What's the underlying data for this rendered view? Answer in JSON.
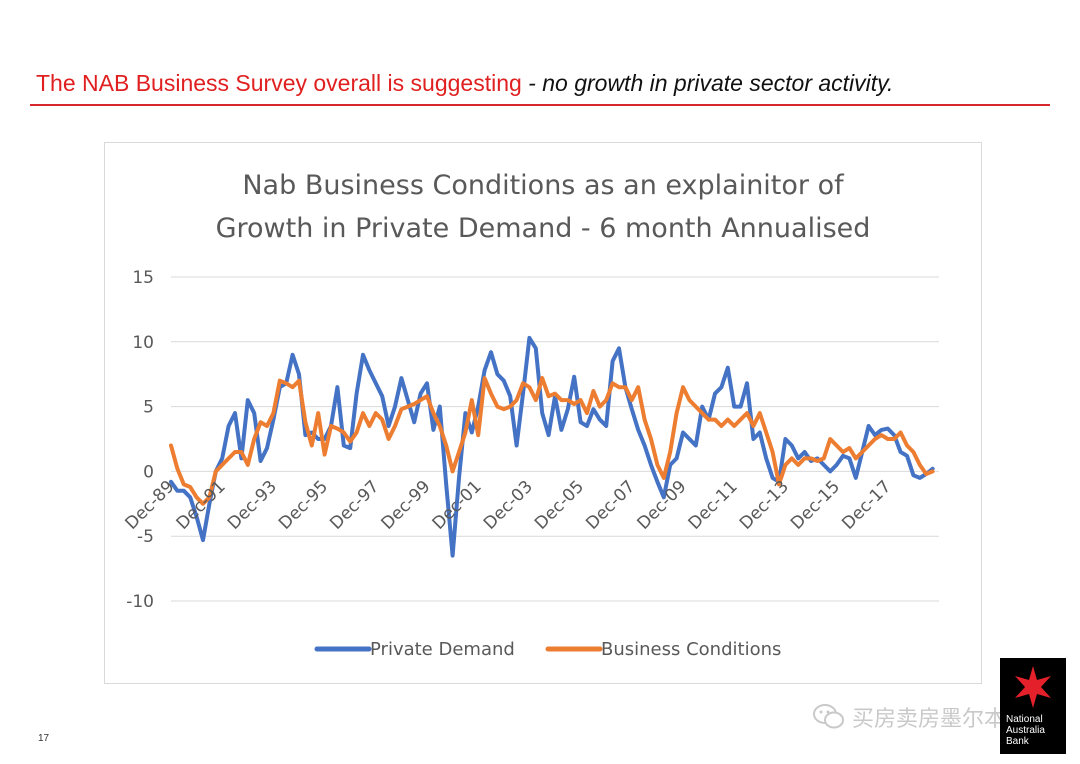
{
  "slide": {
    "title_red": "The NAB Business Survey overall is suggesting",
    "title_rest": " - no growth in private sector activity.",
    "page_number": "17",
    "watermark": "买房卖房墨尔本",
    "logo_text": [
      "National",
      "Australia",
      "Bank"
    ],
    "colors": {
      "title": "#e02020",
      "rule": "#d8282c",
      "logo_star": "#e4202a"
    }
  },
  "chart_data": {
    "type": "line",
    "title": [
      "Nab Business Conditions as an explainitor of",
      "Growth in Private Demand - 6 month Annualised"
    ],
    "xlabel": "",
    "ylabel": "",
    "ylim": [
      -10,
      15
    ],
    "y_ticks": [
      "15",
      "10",
      "5",
      "0",
      "-5",
      "-10"
    ],
    "y_tick_values": [
      15,
      10,
      5,
      0,
      -5,
      -10
    ],
    "x_tick_labels": [
      "Dec-89",
      "Dec-91",
      "Dec-93",
      "Dec-95",
      "Dec-97",
      "Dec-99",
      "Dec-01",
      "Dec-03",
      "Dec-05",
      "Dec-07",
      "Dec-09",
      "Dec-11",
      "Dec-13",
      "Dec-15",
      "Dec-17"
    ],
    "x_tick_positions": [
      1989.92,
      1991.92,
      1993.92,
      1995.92,
      1997.92,
      1999.92,
      2001.92,
      2003.92,
      2005.92,
      2007.92,
      2009.92,
      2011.92,
      2013.92,
      2015.92,
      2017.92
    ],
    "xlim": [
      1989.92,
      2019.92
    ],
    "grid": true,
    "legend": "bottom",
    "series": [
      {
        "name": "Private Demand",
        "color": "#4472c4",
        "points": [
          [
            1989.92,
            -0.8
          ],
          [
            1990.17,
            -1.5
          ],
          [
            1990.42,
            -1.5
          ],
          [
            1990.67,
            -2
          ],
          [
            1990.92,
            -3.5
          ],
          [
            1991.17,
            -5.3
          ],
          [
            1991.42,
            -2.5
          ],
          [
            1991.67,
            0
          ],
          [
            1991.92,
            1
          ],
          [
            1992.17,
            3.5
          ],
          [
            1992.42,
            4.5
          ],
          [
            1992.67,
            1
          ],
          [
            1992.92,
            5.5
          ],
          [
            1993.17,
            4.5
          ],
          [
            1993.42,
            0.8
          ],
          [
            1993.67,
            1.8
          ],
          [
            1993.92,
            4
          ],
          [
            1994.17,
            6.5
          ],
          [
            1994.42,
            6.8
          ],
          [
            1994.67,
            9
          ],
          [
            1994.92,
            7.5
          ],
          [
            1995.17,
            2.8
          ],
          [
            1995.42,
            3
          ],
          [
            1995.67,
            2.5
          ],
          [
            1995.92,
            2.5
          ],
          [
            1996.17,
            3.5
          ],
          [
            1996.42,
            6.5
          ],
          [
            1996.67,
            2
          ],
          [
            1996.92,
            1.8
          ],
          [
            1997.17,
            6
          ],
          [
            1997.42,
            9
          ],
          [
            1997.67,
            7.8
          ],
          [
            1997.92,
            6.8
          ],
          [
            1998.17,
            5.8
          ],
          [
            1998.42,
            3.5
          ],
          [
            1998.67,
            5
          ],
          [
            1998.92,
            7.2
          ],
          [
            1999.17,
            5.5
          ],
          [
            1999.42,
            3.8
          ],
          [
            1999.67,
            6
          ],
          [
            1999.92,
            6.8
          ],
          [
            2000.17,
            3.2
          ],
          [
            2000.42,
            5
          ],
          [
            2000.67,
            -1
          ],
          [
            2000.92,
            -6.5
          ],
          [
            2001.17,
            -0.5
          ],
          [
            2001.42,
            4.5
          ],
          [
            2001.67,
            3
          ],
          [
            2001.92,
            5
          ],
          [
            2002.17,
            7.8
          ],
          [
            2002.42,
            9.2
          ],
          [
            2002.67,
            7.5
          ],
          [
            2002.92,
            7
          ],
          [
            2003.17,
            5.8
          ],
          [
            2003.42,
            2
          ],
          [
            2003.67,
            6
          ],
          [
            2003.92,
            10.3
          ],
          [
            2004.17,
            9.5
          ],
          [
            2004.42,
            4.5
          ],
          [
            2004.67,
            2.8
          ],
          [
            2004.92,
            5.8
          ],
          [
            2005.17,
            3.2
          ],
          [
            2005.42,
            4.8
          ],
          [
            2005.67,
            7.3
          ],
          [
            2005.92,
            3.8
          ],
          [
            2006.17,
            3.5
          ],
          [
            2006.42,
            4.8
          ],
          [
            2006.67,
            4
          ],
          [
            2006.92,
            3.5
          ],
          [
            2007.17,
            8.5
          ],
          [
            2007.42,
            9.5
          ],
          [
            2007.67,
            6.5
          ],
          [
            2007.92,
            4.8
          ],
          [
            2008.17,
            3.2
          ],
          [
            2008.42,
            2
          ],
          [
            2008.67,
            0.5
          ],
          [
            2008.92,
            -0.8
          ],
          [
            2009.17,
            -2
          ],
          [
            2009.42,
            0.5
          ],
          [
            2009.67,
            1
          ],
          [
            2009.92,
            3
          ],
          [
            2010.17,
            2.5
          ],
          [
            2010.42,
            2
          ],
          [
            2010.67,
            5
          ],
          [
            2010.92,
            4
          ],
          [
            2011.17,
            6
          ],
          [
            2011.42,
            6.5
          ],
          [
            2011.67,
            8
          ],
          [
            2011.92,
            5
          ],
          [
            2012.17,
            5
          ],
          [
            2012.42,
            6.8
          ],
          [
            2012.67,
            2.5
          ],
          [
            2012.92,
            3
          ],
          [
            2013.17,
            1
          ],
          [
            2013.42,
            -0.5
          ],
          [
            2013.67,
            -0.8
          ],
          [
            2013.92,
            2.5
          ],
          [
            2014.17,
            2
          ],
          [
            2014.42,
            1
          ],
          [
            2014.67,
            1.5
          ],
          [
            2014.92,
            0.8
          ],
          [
            2015.17,
            1
          ],
          [
            2015.42,
            0.5
          ],
          [
            2015.67,
            0
          ],
          [
            2015.92,
            0.5
          ],
          [
            2016.17,
            1.2
          ],
          [
            2016.42,
            1
          ],
          [
            2016.67,
            -0.5
          ],
          [
            2016.92,
            1.5
          ],
          [
            2017.17,
            3.5
          ],
          [
            2017.42,
            2.8
          ],
          [
            2017.67,
            3.2
          ],
          [
            2017.92,
            3.3
          ],
          [
            2018.17,
            2.8
          ],
          [
            2018.42,
            1.5
          ],
          [
            2018.67,
            1.2
          ],
          [
            2018.92,
            -0.3
          ],
          [
            2019.17,
            -0.5
          ],
          [
            2019.42,
            -0.2
          ],
          [
            2019.67,
            0.2
          ]
        ]
      },
      {
        "name": "Business Conditions",
        "color": "#ed7d31",
        "points": [
          [
            1989.92,
            2
          ],
          [
            1990.17,
            0.2
          ],
          [
            1990.42,
            -1
          ],
          [
            1990.67,
            -1.2
          ],
          [
            1990.92,
            -2
          ],
          [
            1991.17,
            -2.5
          ],
          [
            1991.42,
            -2
          ],
          [
            1991.67,
            0
          ],
          [
            1991.92,
            0.5
          ],
          [
            1992.17,
            1
          ],
          [
            1992.42,
            1.5
          ],
          [
            1992.67,
            1.5
          ],
          [
            1992.92,
            0.5
          ],
          [
            1993.17,
            2.5
          ],
          [
            1993.42,
            3.8
          ],
          [
            1993.67,
            3.5
          ],
          [
            1993.92,
            4.5
          ],
          [
            1994.17,
            7
          ],
          [
            1994.42,
            6.8
          ],
          [
            1994.67,
            6.5
          ],
          [
            1994.92,
            7
          ],
          [
            1995.17,
            3.8
          ],
          [
            1995.42,
            2
          ],
          [
            1995.67,
            4.5
          ],
          [
            1995.92,
            1.3
          ],
          [
            1996.17,
            3.5
          ],
          [
            1996.42,
            3.3
          ],
          [
            1996.67,
            3
          ],
          [
            1996.92,
            2.3
          ],
          [
            1997.17,
            3
          ],
          [
            1997.42,
            4.5
          ],
          [
            1997.67,
            3.5
          ],
          [
            1997.92,
            4.5
          ],
          [
            1998.17,
            4
          ],
          [
            1998.42,
            2.5
          ],
          [
            1998.67,
            3.5
          ],
          [
            1998.92,
            4.8
          ],
          [
            1999.17,
            5
          ],
          [
            1999.42,
            5.2
          ],
          [
            1999.67,
            5.5
          ],
          [
            1999.92,
            5.8
          ],
          [
            2000.17,
            4.5
          ],
          [
            2000.42,
            3.5
          ],
          [
            2000.67,
            2
          ],
          [
            2000.92,
            0
          ],
          [
            2001.17,
            1.5
          ],
          [
            2001.42,
            3
          ],
          [
            2001.67,
            5.5
          ],
          [
            2001.92,
            2.8
          ],
          [
            2002.17,
            7.2
          ],
          [
            2002.42,
            6
          ],
          [
            2002.67,
            5
          ],
          [
            2002.92,
            4.8
          ],
          [
            2003.17,
            5
          ],
          [
            2003.42,
            5.5
          ],
          [
            2003.67,
            6.8
          ],
          [
            2003.92,
            6.5
          ],
          [
            2004.17,
            5.5
          ],
          [
            2004.42,
            7.2
          ],
          [
            2004.67,
            5.8
          ],
          [
            2004.92,
            6
          ],
          [
            2005.17,
            5.5
          ],
          [
            2005.42,
            5.5
          ],
          [
            2005.67,
            5.2
          ],
          [
            2005.92,
            5.5
          ],
          [
            2006.17,
            4.5
          ],
          [
            2006.42,
            6.2
          ],
          [
            2006.67,
            5
          ],
          [
            2006.92,
            5.5
          ],
          [
            2007.17,
            6.8
          ],
          [
            2007.42,
            6.5
          ],
          [
            2007.67,
            6.5
          ],
          [
            2007.92,
            5.5
          ],
          [
            2008.17,
            6.5
          ],
          [
            2008.42,
            4
          ],
          [
            2008.67,
            2.5
          ],
          [
            2008.92,
            0.5
          ],
          [
            2009.17,
            -0.5
          ],
          [
            2009.42,
            1.5
          ],
          [
            2009.67,
            4.5
          ],
          [
            2009.92,
            6.5
          ],
          [
            2010.17,
            5.5
          ],
          [
            2010.42,
            5
          ],
          [
            2010.67,
            4.5
          ],
          [
            2010.92,
            4
          ],
          [
            2011.17,
            4
          ],
          [
            2011.42,
            3.5
          ],
          [
            2011.67,
            4
          ],
          [
            2011.92,
            3.5
          ],
          [
            2012.17,
            4
          ],
          [
            2012.42,
            4.5
          ],
          [
            2012.67,
            3.5
          ],
          [
            2012.92,
            4.5
          ],
          [
            2013.17,
            3
          ],
          [
            2013.42,
            1.5
          ],
          [
            2013.67,
            -1
          ],
          [
            2013.92,
            0.5
          ],
          [
            2014.17,
            1
          ],
          [
            2014.42,
            0.5
          ],
          [
            2014.67,
            1
          ],
          [
            2014.92,
            1
          ],
          [
            2015.17,
            0.8
          ],
          [
            2015.42,
            1
          ],
          [
            2015.67,
            2.5
          ],
          [
            2015.92,
            2
          ],
          [
            2016.17,
            1.5
          ],
          [
            2016.42,
            1.8
          ],
          [
            2016.67,
            1
          ],
          [
            2016.92,
            1.5
          ],
          [
            2017.17,
            2
          ],
          [
            2017.42,
            2.5
          ],
          [
            2017.67,
            2.8
          ],
          [
            2017.92,
            2.5
          ],
          [
            2018.17,
            2.5
          ],
          [
            2018.42,
            3
          ],
          [
            2018.67,
            2
          ],
          [
            2018.92,
            1.5
          ],
          [
            2019.17,
            0.5
          ],
          [
            2019.42,
            -0.2
          ],
          [
            2019.67,
            0
          ]
        ]
      }
    ]
  }
}
